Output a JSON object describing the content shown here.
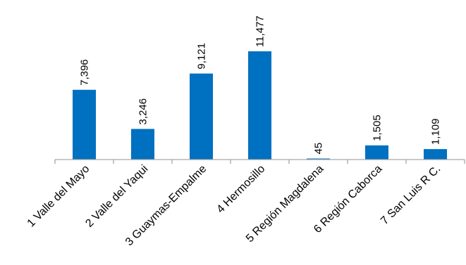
{
  "chart_data": {
    "type": "bar",
    "title": "",
    "xlabel": "",
    "ylabel": "",
    "categories": [
      "1 Valle del Mayo",
      "2 Valle del Yaqui",
      "3 Guaymas-Empalme",
      "4 Hermosillo",
      "5 Región Magdalena",
      "6 Región Caborca",
      "7 San Luis R C."
    ],
    "values": [
      7396,
      3246,
      9121,
      11477,
      45,
      1505,
      1109
    ],
    "value_labels": [
      "7,396",
      "3,246",
      "9,121",
      "11,477",
      "45",
      "1,505",
      "1,109"
    ],
    "ylim": [
      0,
      12000
    ],
    "grid": false,
    "legend": "none",
    "bar_color": "#0070C0",
    "axis_color": "#A6A6A6"
  }
}
